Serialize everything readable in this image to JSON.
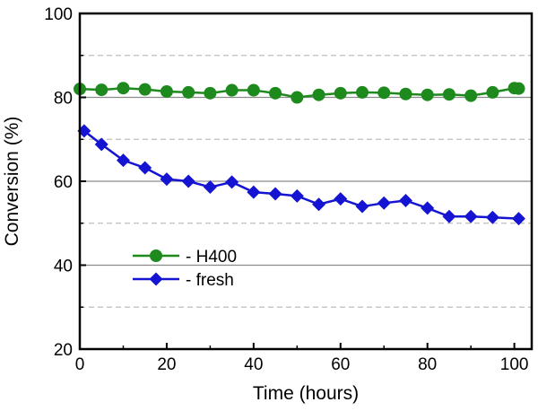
{
  "chart_data": {
    "type": "line",
    "title": "",
    "xlabel": "Time (hours)",
    "ylabel": "Conversion (%)",
    "xlim": [
      0,
      104
    ],
    "ylim": [
      20,
      100
    ],
    "x_ticks": [
      0,
      20,
      40,
      60,
      80,
      100
    ],
    "y_ticks": [
      20,
      40,
      60,
      80,
      100
    ],
    "x_tick_labels": [
      "0",
      "20",
      "40",
      "60",
      "80",
      "100"
    ],
    "y_tick_labels": [
      "20",
      "40",
      "60",
      "80",
      "100"
    ],
    "grid": {
      "solid_y": [
        40,
        60,
        80
      ],
      "dashed_y": [
        30,
        50,
        70,
        90
      ]
    },
    "legend_placement": "lower-left",
    "series": [
      {
        "name": "- H400",
        "color": "#1e8a1e",
        "marker": "circle",
        "x": [
          0,
          5,
          10,
          15,
          20,
          25,
          30,
          35,
          40,
          45,
          50,
          55,
          60,
          65,
          70,
          75,
          80,
          85,
          90,
          95,
          100,
          101
        ],
        "y": [
          82.0,
          81.8,
          82.2,
          81.9,
          81.4,
          81.2,
          81.0,
          81.7,
          81.7,
          81.0,
          80.0,
          80.6,
          81.0,
          81.2,
          81.1,
          80.8,
          80.6,
          80.7,
          80.4,
          81.2,
          82.2,
          82.1
        ]
      },
      {
        "name": "- fresh",
        "color": "#1414d2",
        "marker": "diamond",
        "x": [
          1,
          5,
          10,
          15,
          20,
          25,
          30,
          35,
          40,
          45,
          50,
          55,
          60,
          65,
          70,
          75,
          80,
          85,
          90,
          95,
          101
        ],
        "y": [
          72.0,
          68.8,
          65.0,
          63.2,
          60.5,
          60.0,
          58.6,
          59.8,
          57.4,
          57.0,
          56.5,
          54.5,
          55.8,
          54.0,
          54.8,
          55.4,
          53.6,
          51.6,
          51.6,
          51.4,
          51.1
        ]
      }
    ]
  }
}
